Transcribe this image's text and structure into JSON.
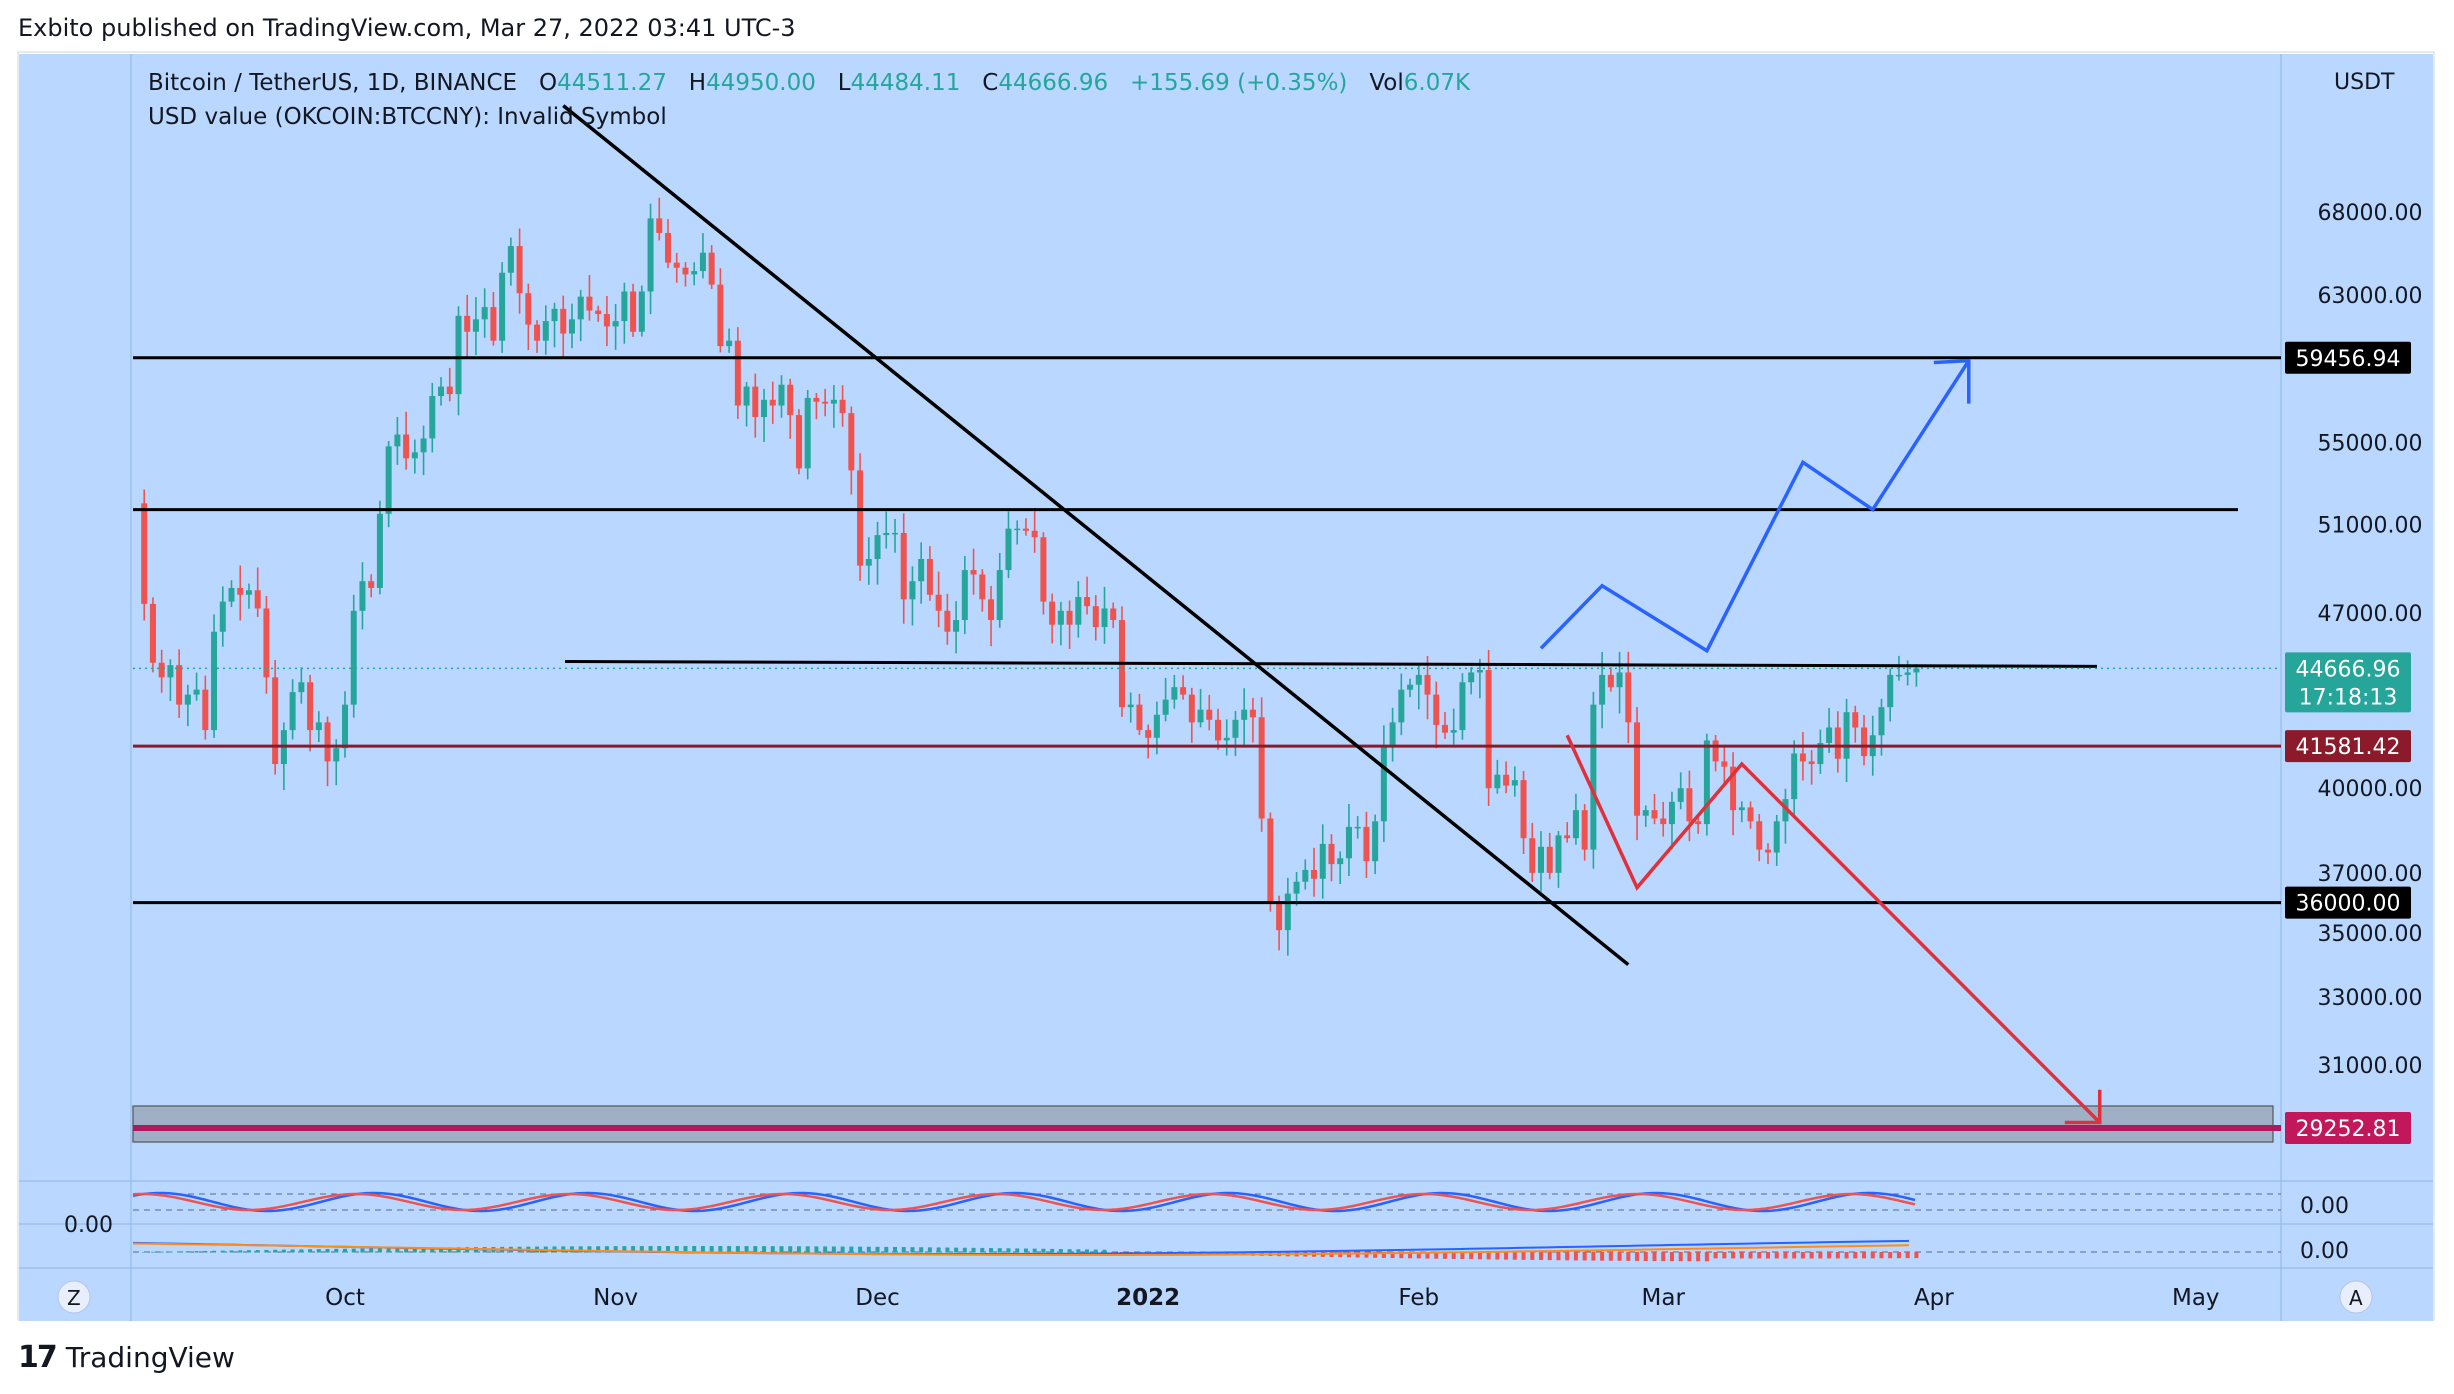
{
  "header": {
    "published_by": "Exbito published on TradingView.com, Mar 27, 2022 03:41 UTC-3"
  },
  "footer": {
    "brand": "TradingView"
  },
  "legend": {
    "symbol": "Bitcoin / TetherUS, 1D, BINANCE",
    "o_label": "O",
    "o": "44511.27",
    "h_label": "H",
    "h": "44950.00",
    "l_label": "L",
    "l": "44484.11",
    "c_label": "C",
    "c": "44666.96",
    "change": "+155.69 (+0.35%)",
    "vol_label": "Vol",
    "vol": "6.07K",
    "line2": "USD value (OKCOIN:BTCCNY): Invalid Symbol"
  },
  "currency": "USDT",
  "colors": {
    "background": "#bad7ff",
    "up": "#26a69a",
    "down": "#ef5350",
    "trend_black": "#000000",
    "support_red": "#8b1a2a",
    "zone_magenta": "#b0185e",
    "projection_blue": "#2962ff",
    "projection_red": "#e0303a"
  },
  "chart_data": {
    "type": "candlestick",
    "x_ticks": [
      "Oct",
      "Nov",
      "Dec",
      "2022",
      "Feb",
      "Mar",
      "Apr",
      "May"
    ],
    "y_ticks": [
      "68000.00",
      "63000.00",
      "55000.00",
      "51000.00",
      "47000.00",
      "40000.00",
      "37000.00",
      "35000.00",
      "33000.00",
      "31000.00"
    ],
    "ylim": [
      28000,
      72000
    ],
    "scale": "log",
    "price_labels": [
      {
        "value": "59456.94",
        "style": "black"
      },
      {
        "value": "44666.96",
        "style": "teal",
        "sub": "17:18:13"
      },
      {
        "value": "41581.42",
        "style": "darkred"
      },
      {
        "value": "36000.00",
        "style": "black"
      },
      {
        "value": "29252.81",
        "style": "magenta"
      }
    ],
    "horizontal_levels": [
      59456.94,
      51700,
      44950,
      41581.42,
      36000,
      29252.81
    ],
    "closes": [
      47400,
      44900,
      44300,
      44800,
      43200,
      43600,
      43800,
      42200,
      46200,
      47500,
      48100,
      47800,
      48000,
      47200,
      44300,
      40900,
      42200,
      43700,
      44100,
      42200,
      42500,
      41000,
      41500,
      43200,
      47100,
      48400,
      48100,
      51500,
      54800,
      55400,
      54200,
      54500,
      55200,
      57400,
      57900,
      57500,
      61800,
      60900,
      61600,
      62300,
      60400,
      64300,
      65900,
      63100,
      61300,
      60400,
      61500,
      62200,
      60800,
      61600,
      62900,
      62100,
      61900,
      61200,
      61500,
      63200,
      60900,
      63200,
      67600,
      66700,
      64900,
      64600,
      64200,
      64400,
      65500,
      63600,
      60100,
      60400,
      56900,
      57900,
      56300,
      57200,
      56900,
      58000,
      56400,
      53700,
      57300,
      57100,
      57000,
      57200,
      56500,
      53600,
      49100,
      49400,
      50500,
      50600,
      50600,
      47600,
      48400,
      49400,
      47800,
      47100,
      46200,
      46700,
      48900,
      48700,
      47600,
      46700,
      48900,
      50800,
      50800,
      50700,
      50400,
      47500,
      46500,
      47100,
      46500,
      47700,
      47300,
      46400,
      47200,
      46700,
      43100,
      43200,
      42200,
      41900,
      42800,
      43400,
      43900,
      43600,
      42500,
      43000,
      42600,
      41800,
      41900,
      42600,
      43000,
      42700,
      38900,
      36000,
      35100,
      36300,
      36700,
      37100,
      36800,
      38000,
      37300,
      37500,
      38600,
      38600,
      37400,
      38800,
      41600,
      42500,
      43800,
      44000,
      44400,
      43600,
      42400,
      42100,
      42200,
      44100,
      44500,
      44600,
      40000,
      40500,
      40100,
      40300,
      38200,
      37000,
      37900,
      37000,
      38300,
      38200,
      39200,
      37800,
      43200,
      44400,
      43900,
      44500,
      42500,
      39000,
      39200,
      38900,
      38700,
      39500,
      40000,
      38800,
      38700,
      41800,
      41000,
      40800,
      39200,
      39300,
      38800,
      37800,
      37700,
      38800,
      39600,
      41300,
      41000,
      40900,
      41700,
      42300,
      41100,
      42900,
      42300,
      41200,
      42000,
      43100,
      44400,
      44400,
      44500,
      44666
    ]
  },
  "indicators": {
    "stoch_rsi_value": "0.00",
    "macd_value": "0.00",
    "left_scale_label": "0.00"
  },
  "controls": {
    "zoom_left": "Z",
    "auto_scale": "A"
  }
}
